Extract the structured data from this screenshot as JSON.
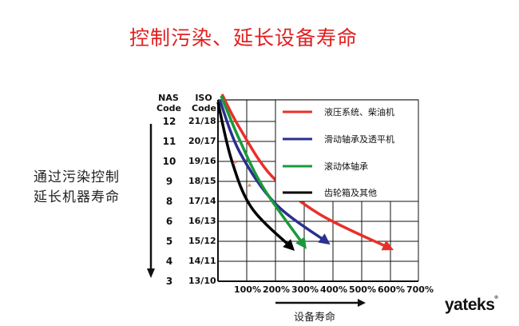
{
  "title": "控制污染、延长设备寿命",
  "side_text": [
    "通过污染控制",
    "延长机器寿命"
  ],
  "x_axis_label": "设备寿命",
  "logo": "yateks",
  "chart_data": {
    "type": "line",
    "column_headers": [
      "NAS Code",
      "ISO Code"
    ],
    "y_ticks_nas": [
      "12",
      "11",
      "10",
      "9",
      "8",
      "6",
      "5",
      "4",
      "3"
    ],
    "y_ticks_iso": [
      "21/18",
      "20/17",
      "19/16",
      "18/15",
      "17/14",
      "16/13",
      "15/12",
      "14/11",
      "13/10"
    ],
    "x_ticks": [
      "100%",
      "200%",
      "300%",
      "400%",
      "500%",
      "600%",
      "700%"
    ],
    "xlim": [
      0,
      700
    ],
    "grid": true,
    "legend_placement": "top-right",
    "series": [
      {
        "name": "液压系统、柴油机",
        "color": "#e8302a",
        "points": [
          [
            14,
            9.36
          ],
          [
            75,
            7.68
          ],
          [
            186,
            5.28
          ],
          [
            353,
            3.36
          ],
          [
            594,
            1.68
          ]
        ]
      },
      {
        "name": "滑动轴承及透平机",
        "color": "#2b2f8f",
        "points": [
          [
            6,
            9.08
          ],
          [
            75,
            6.48
          ],
          [
            200,
            3.88
          ],
          [
            375,
            2.0
          ]
        ]
      },
      {
        "name": "滚动体轴承",
        "color": "#1a9a3a",
        "points": [
          [
            11,
            9.28
          ],
          [
            75,
            7.08
          ],
          [
            158,
            4.68
          ],
          [
            297,
            1.84
          ]
        ]
      },
      {
        "name": "齿轮箱及其他",
        "color": "#000000",
        "points": [
          [
            0,
            8.96
          ],
          [
            47,
            6.08
          ],
          [
            117,
            3.68
          ],
          [
            253,
            1.72
          ]
        ]
      }
    ]
  }
}
